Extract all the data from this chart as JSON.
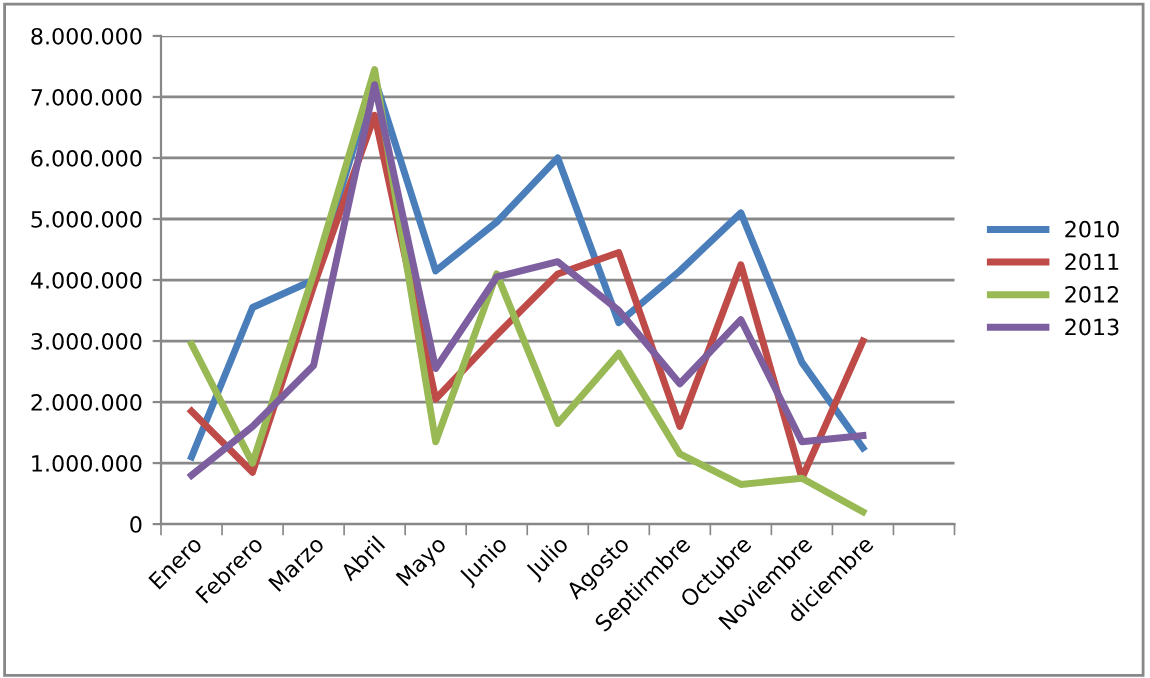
{
  "chart_data": {
    "type": "line",
    "categories": [
      "Enero",
      "Febrero",
      "Marzo",
      "Abril",
      "Mayo",
      "Junio",
      "Julio",
      "Agosto",
      "Septirmbre",
      "Octubre",
      "Noviembre",
      "diciembre",
      null
    ],
    "series": [
      {
        "name": "2010",
        "color": "#4a7ebb",
        "values": [
          1100000,
          3550000,
          4000000,
          7300000,
          4150000,
          4950000,
          6000000,
          3300000,
          4150000,
          5100000,
          2650000,
          1250000,
          null
        ]
      },
      {
        "name": "2011",
        "color": "#be4b48",
        "values": [
          1850000,
          850000,
          3900000,
          6700000,
          2050000,
          3100000,
          4100000,
          4450000,
          1600000,
          4250000,
          750000,
          3000000,
          null
        ]
      },
      {
        "name": "2012",
        "color": "#98b954",
        "values": [
          2950000,
          1000000,
          4100000,
          7450000,
          1350000,
          4100000,
          1650000,
          2800000,
          1150000,
          650000,
          750000,
          200000,
          null
        ]
      },
      {
        "name": "2013",
        "color": "#7d5fa0",
        "values": [
          800000,
          1600000,
          2600000,
          7200000,
          2550000,
          4050000,
          4300000,
          3500000,
          2300000,
          3350000,
          1350000,
          1450000,
          null
        ]
      }
    ],
    "ylim": [
      0,
      8000000
    ],
    "yticks": [
      {
        "value": 0,
        "label": "0"
      },
      {
        "value": 1000000,
        "label": "1.000.000"
      },
      {
        "value": 2000000,
        "label": "2.000.000"
      },
      {
        "value": 3000000,
        "label": "3.000.000"
      },
      {
        "value": 4000000,
        "label": "4.000.000"
      },
      {
        "value": 5000000,
        "label": "5.000.000"
      },
      {
        "value": 6000000,
        "label": "6.000.000"
      },
      {
        "value": 7000000,
        "label": "7.000.000"
      },
      {
        "value": 8000000,
        "label": "8.000.000"
      }
    ],
    "grid": "y",
    "legend": "right",
    "marker": "none",
    "line_style": "solid"
  }
}
